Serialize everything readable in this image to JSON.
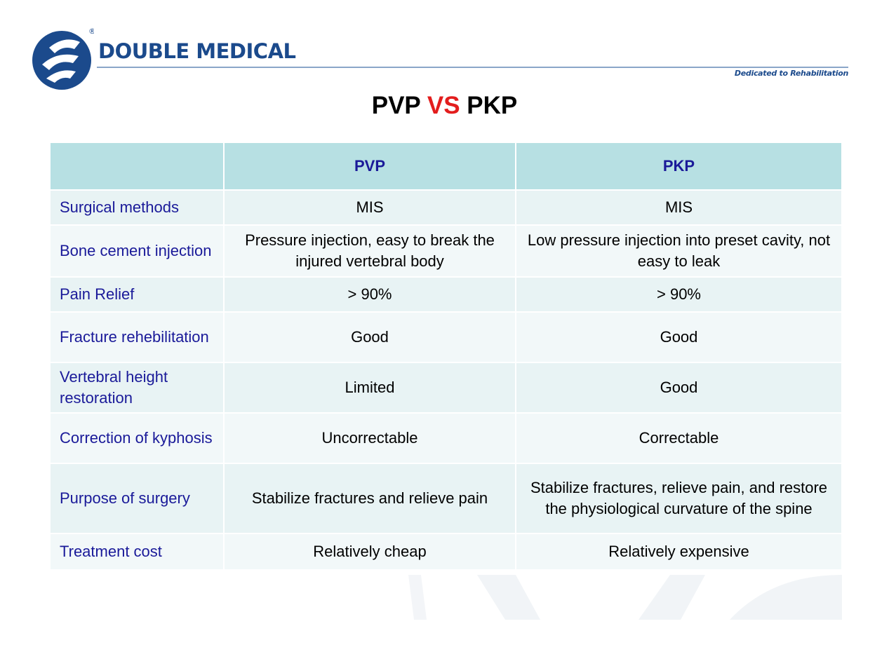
{
  "header": {
    "brand": "DOUBLE MEDICAL",
    "tagline": "Dedicated to Rehabilitation",
    "registered_mark": "®"
  },
  "title": {
    "left": "PVP",
    "middle": "VS",
    "right": "PKP"
  },
  "table": {
    "columns": [
      "",
      "PVP",
      "PKP"
    ],
    "rows": [
      {
        "label": "Surgical methods",
        "pvp": "MIS",
        "pkp": "MIS"
      },
      {
        "label": "Bone cement injection",
        "pvp": "Pressure injection, easy to break the injured vertebral body",
        "pkp": "Low pressure injection into preset cavity, not easy to leak"
      },
      {
        "label": "Pain Relief",
        "pvp": "> 90%",
        "pkp": "> 90%"
      },
      {
        "label": "Fracture rehebilitation",
        "pvp": "Good",
        "pkp": "Good"
      },
      {
        "label": "Vertebral height restoration",
        "pvp": "Limited",
        "pkp": "Good"
      },
      {
        "label": "Correction of kyphosis",
        "pvp": "Uncorrectable",
        "pkp": "Correctable"
      },
      {
        "label": "Purpose of surgery",
        "pvp": "Stabilize fractures and relieve pain",
        "pkp": "Stabilize fractures, relieve pain, and restore the physiological curvature of the spine"
      },
      {
        "label": "Treatment cost",
        "pvp": "Relatively cheap",
        "pkp": "Relatively expensive"
      }
    ]
  },
  "colors": {
    "brand_blue": "#1b4a8c",
    "label_navy": "#1a1a99",
    "header_teal": "#b7e0e3",
    "vs_red": "#e31d1d"
  },
  "icons": {
    "logo": "double-medical-logo",
    "watermark": "logo-watermark"
  }
}
